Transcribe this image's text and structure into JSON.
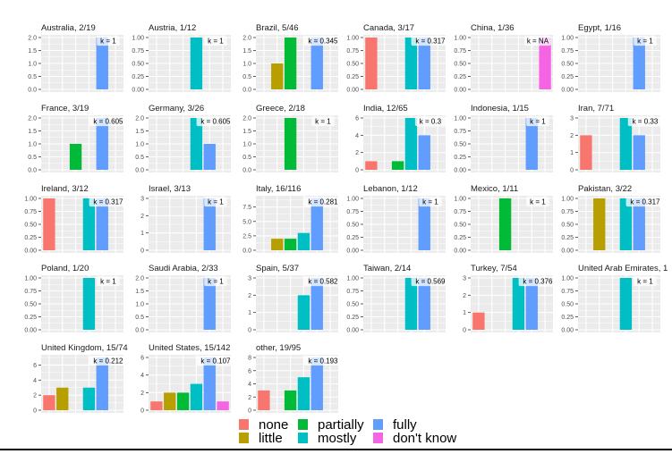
{
  "chart_data": {
    "type": "bar",
    "categories": [
      "none",
      "little",
      "partially",
      "mostly",
      "fully",
      "don't know"
    ],
    "colors": {
      "none": "#F8766D",
      "little": "#B79F00",
      "partially": "#00BA38",
      "mostly": "#00BFC4",
      "fully": "#619CFF",
      "don't know": "#F564E3"
    },
    "panel_background": "#EBEBEB",
    "grid": true,
    "legend_position": "bottom",
    "legend": [
      "none",
      "little",
      "partially",
      "mostly",
      "fully",
      "don't know"
    ],
    "panels": [
      {
        "title": "Australia, 2/19",
        "k": "k = 1",
        "values": [
          0,
          0,
          0,
          0,
          2,
          0
        ],
        "y_ticks": [
          "0.0",
          "0.5",
          "1.0",
          "1.5",
          "2.0"
        ],
        "ylim": [
          0,
          2
        ]
      },
      {
        "title": "Austria, 1/12",
        "k": "k = 1",
        "values": [
          0,
          0,
          0,
          1,
          0,
          0
        ],
        "y_ticks": [
          "0.00",
          "0.25",
          "0.50",
          "0.75",
          "1.00"
        ],
        "ylim": [
          0,
          1
        ]
      },
      {
        "title": "Brazil, 5/46",
        "k": "k = 0.345",
        "values": [
          0,
          1,
          2,
          0,
          2,
          0
        ],
        "y_ticks": [
          "0.0",
          "0.5",
          "1.0",
          "1.5",
          "2.0"
        ],
        "ylim": [
          0,
          2
        ]
      },
      {
        "title": "Canada, 3/17",
        "k": "k = 0.317",
        "values": [
          1,
          0,
          0,
          1,
          1,
          0
        ],
        "y_ticks": [
          "0.00",
          "0.25",
          "0.50",
          "0.75",
          "1.00"
        ],
        "ylim": [
          0,
          1
        ]
      },
      {
        "title": "China, 1/36",
        "k": "k = NA",
        "values": [
          0,
          0,
          0,
          0,
          0,
          1
        ],
        "y_ticks": [
          "0.00",
          "0.25",
          "0.50",
          "0.75",
          "1.00"
        ],
        "ylim": [
          0,
          1
        ]
      },
      {
        "title": "Egypt, 1/16",
        "k": "k = 1",
        "values": [
          0,
          0,
          0,
          0,
          1,
          0
        ],
        "y_ticks": [
          "0.00",
          "0.25",
          "0.50",
          "0.75",
          "1.00"
        ],
        "ylim": [
          0,
          1
        ]
      },
      {
        "title": "France, 3/19",
        "k": "k = 0.605",
        "values": [
          0,
          0,
          1,
          0,
          2,
          0
        ],
        "y_ticks": [
          "0.0",
          "0.5",
          "1.0",
          "1.5",
          "2.0"
        ],
        "ylim": [
          0,
          2
        ]
      },
      {
        "title": "Germany, 3/26",
        "k": "k = 0.605",
        "values": [
          0,
          0,
          0,
          2,
          1,
          0
        ],
        "y_ticks": [
          "0.0",
          "0.5",
          "1.0",
          "1.5",
          "2.0"
        ],
        "ylim": [
          0,
          2
        ]
      },
      {
        "title": "Greece, 2/18",
        "k": "k = 1",
        "values": [
          0,
          0,
          2,
          0,
          0,
          0
        ],
        "y_ticks": [
          "0.0",
          "0.5",
          "1.0",
          "1.5",
          "2.0"
        ],
        "ylim": [
          0,
          2
        ]
      },
      {
        "title": "India, 12/65",
        "k": "k = 0.3",
        "values": [
          1,
          0,
          1,
          6,
          4,
          0
        ],
        "y_ticks": [
          "0",
          "2",
          "4",
          "6"
        ],
        "ylim": [
          0,
          6
        ]
      },
      {
        "title": "Indonesia, 1/15",
        "k": "k = 1",
        "values": [
          0,
          0,
          0,
          0,
          1,
          0
        ],
        "y_ticks": [
          "0.00",
          "0.25",
          "0.50",
          "0.75",
          "1.00"
        ],
        "ylim": [
          0,
          1
        ]
      },
      {
        "title": "Iran, 7/71",
        "k": "k = 0.33",
        "values": [
          2,
          0,
          0,
          3,
          2,
          0
        ],
        "y_ticks": [
          "0",
          "1",
          "2",
          "3"
        ],
        "ylim": [
          0,
          3
        ]
      },
      {
        "title": "Ireland, 3/12",
        "k": "k = 0.317",
        "values": [
          1,
          0,
          0,
          1,
          1,
          0
        ],
        "y_ticks": [
          "0.00",
          "0.25",
          "0.50",
          "0.75",
          "1.00"
        ],
        "ylim": [
          0,
          1
        ]
      },
      {
        "title": "Israel, 3/13",
        "k": "k = 1",
        "values": [
          0,
          0,
          0,
          0,
          3,
          0
        ],
        "y_ticks": [
          "0",
          "1",
          "2",
          "3"
        ],
        "ylim": [
          0,
          3
        ]
      },
      {
        "title": "Italy, 16/116",
        "k": "k = 0.281",
        "values": [
          0,
          2,
          2,
          3,
          9,
          0
        ],
        "y_ticks": [
          "0.0",
          "2.5",
          "5.0",
          "7.5"
        ],
        "ylim": [
          0,
          9
        ]
      },
      {
        "title": "Lebanon, 1/12",
        "k": "k = 1",
        "values": [
          0,
          0,
          0,
          0,
          1,
          0
        ],
        "y_ticks": [
          "0.00",
          "0.25",
          "0.50",
          "0.75",
          "1.00"
        ],
        "ylim": [
          0,
          1
        ]
      },
      {
        "title": "Mexico, 1/11",
        "k": "k = 1",
        "values": [
          0,
          0,
          1,
          0,
          0,
          0
        ],
        "y_ticks": [
          "0.00",
          "0.25",
          "0.50",
          "0.75",
          "1.00"
        ],
        "ylim": [
          0,
          1
        ]
      },
      {
        "title": "Pakistan, 3/22",
        "k": "k = 0.317",
        "values": [
          0,
          1,
          0,
          1,
          1,
          0
        ],
        "y_ticks": [
          "0.00",
          "0.25",
          "0.50",
          "0.75",
          "1.00"
        ],
        "ylim": [
          0,
          1
        ]
      },
      {
        "title": "Poland, 1/20",
        "k": "k = 1",
        "values": [
          0,
          0,
          0,
          1,
          0,
          0
        ],
        "y_ticks": [
          "0.00",
          "0.25",
          "0.50",
          "0.75",
          "1.00"
        ],
        "ylim": [
          0,
          1
        ]
      },
      {
        "title": "Saudi Arabia, 2/33",
        "k": "k = 1",
        "values": [
          0,
          0,
          0,
          0,
          2,
          0
        ],
        "y_ticks": [
          "0.0",
          "0.5",
          "1.0",
          "1.5",
          "2.0"
        ],
        "ylim": [
          0,
          2
        ]
      },
      {
        "title": "Spain, 5/37",
        "k": "k = 0.582",
        "values": [
          0,
          0,
          0,
          2,
          3,
          0
        ],
        "y_ticks": [
          "0",
          "1",
          "2",
          "3"
        ],
        "ylim": [
          0,
          3
        ]
      },
      {
        "title": "Taiwan, 2/14",
        "k": "k = 0.569",
        "values": [
          0,
          0,
          0,
          1,
          1,
          0
        ],
        "y_ticks": [
          "0.00",
          "0.25",
          "0.50",
          "0.75",
          "1.00"
        ],
        "ylim": [
          0,
          1
        ]
      },
      {
        "title": "Turkey, 7/54",
        "k": "k = 0.376",
        "values": [
          1,
          0,
          0,
          3,
          3,
          0
        ],
        "y_ticks": [
          "0",
          "1",
          "2",
          "3"
        ],
        "ylim": [
          0,
          3
        ]
      },
      {
        "title": "United Arab Emirates, 1",
        "k": "k = 1",
        "values": [
          0,
          0,
          0,
          1,
          0,
          0
        ],
        "y_ticks": [
          "0.00",
          "0.25",
          "0.50",
          "0.75",
          "1.00"
        ],
        "ylim": [
          0,
          1
        ]
      },
      {
        "title": "United Kingdom, 15/74",
        "k": "k = 0.212",
        "values": [
          2,
          3,
          0,
          3,
          7,
          0
        ],
        "y_ticks": [
          "0",
          "2",
          "4",
          "6"
        ],
        "ylim": [
          0,
          7
        ]
      },
      {
        "title": "United States, 15/142",
        "k": "k = 0.107",
        "values": [
          1,
          2,
          2,
          3,
          6,
          1
        ],
        "y_ticks": [
          "0",
          "2",
          "4",
          "6"
        ],
        "ylim": [
          0,
          6
        ]
      },
      {
        "title": "other, 19/95",
        "k": "k = 0.193",
        "values": [
          3,
          0,
          3,
          5,
          8,
          0
        ],
        "y_ticks": [
          "0",
          "2",
          "4",
          "6",
          "8"
        ],
        "ylim": [
          0,
          8
        ]
      }
    ]
  }
}
